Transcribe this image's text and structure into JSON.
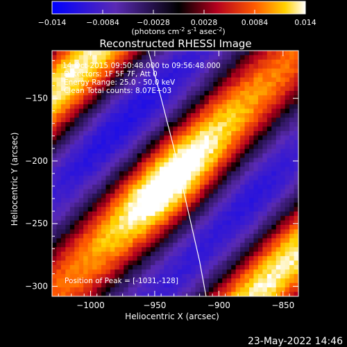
{
  "colorbar": {
    "ticks": [
      "-0.014",
      "-0.0084",
      "-0.0028",
      "0.0028",
      "0.0084",
      "0.014"
    ],
    "unit_label_parts": [
      "(photons cm",
      "-2",
      " s",
      "-1",
      " asec",
      "-2",
      ")"
    ]
  },
  "title": "Reconstructed RHESSI Image",
  "info": {
    "line1": "14-Oct-2015 09:50:48.000 to 09:56:48.000",
    "line2": "Detectors: 1F 5F 7F, Att 0",
    "line3": "Energy Range: 25.0 - 50.0 keV",
    "line4": "Clean     Total counts: 8.07E+03"
  },
  "peak_label": "Position of Peak = [-1031,-128]",
  "timestamp": "23-May-2022 14:46",
  "chart_data": {
    "type": "heatmap",
    "title": "Reconstructed RHESSI Image",
    "xlabel": "Heliocentric X (arcsec)",
    "ylabel": "Heliocentric Y (arcsec)",
    "xlim": [
      -1030,
      -838
    ],
    "ylim": [
      -308,
      -112
    ],
    "x_ticks": [
      -1000,
      -950,
      -900,
      -850
    ],
    "y_ticks": [
      -150,
      -200,
      -250,
      -300
    ],
    "x_tick_labels": [
      "−1000",
      "−950",
      "−900",
      "−850"
    ],
    "y_tick_labels": [
      "−150",
      "−200",
      "−250",
      "−300"
    ],
    "colorbar_range": [
      -0.014,
      0.014
    ],
    "colormap_stops": [
      "#0000ff",
      "#5a2ab4",
      "#000000",
      "#b4001e",
      "#ff5a00",
      "#ffd200",
      "#ffffff"
    ],
    "limb_curve": {
      "x": [
        -955,
        -945,
        -935,
        -925,
        -915,
        -910
      ],
      "y": [
        -112,
        -150,
        -190,
        -235,
        -280,
        -308
      ]
    },
    "peak": [
      -1031,
      -128
    ]
  }
}
